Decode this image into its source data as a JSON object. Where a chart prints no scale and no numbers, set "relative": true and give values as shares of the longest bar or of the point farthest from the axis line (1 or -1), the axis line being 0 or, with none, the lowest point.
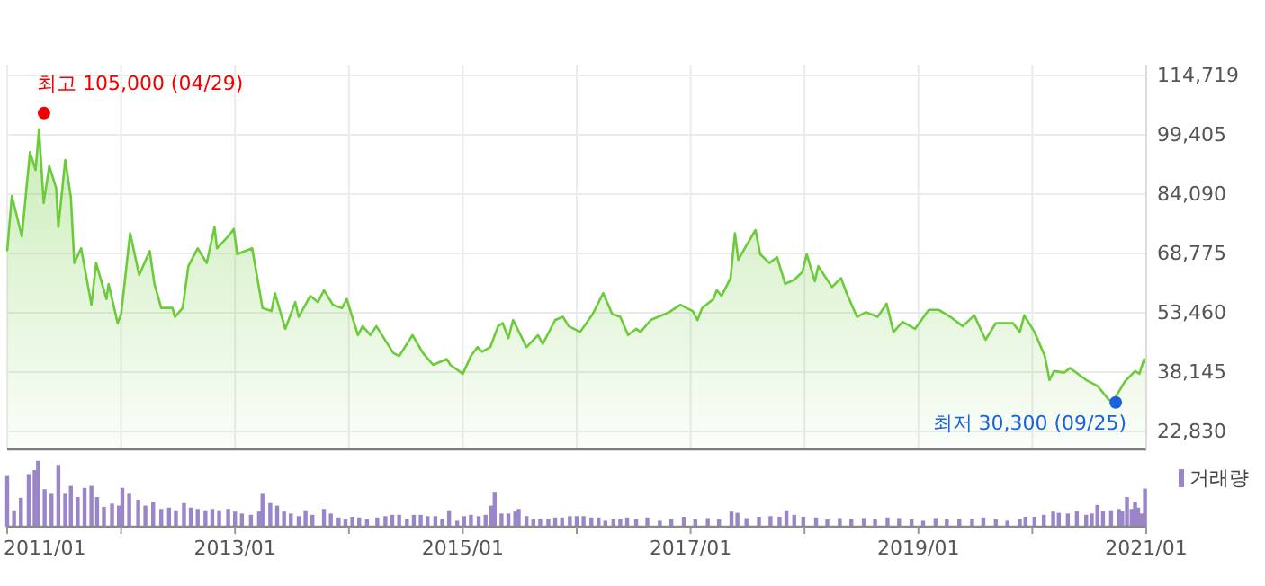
{
  "chart_data": [
    {
      "type": "area",
      "tick_labels": "y",
      "grid": true,
      "xlim": [
        "2011-01-01",
        "2021-01-01"
      ],
      "xticks": [
        {
          "value": "2011-01-01",
          "label": null
        },
        {
          "value": "2012-01-01",
          "label": null
        },
        {
          "value": "2013-01-01",
          "label": null
        },
        {
          "value": "2014-01-01",
          "label": null
        },
        {
          "value": "2015-01-01",
          "label": null
        },
        {
          "value": "2016-01-01",
          "label": null
        },
        {
          "value": "2017-01-01",
          "label": null
        },
        {
          "value": "2018-01-01",
          "label": null
        },
        {
          "value": "2019-01-01",
          "label": null
        },
        {
          "value": "2020-01-01",
          "label": null
        },
        {
          "value": "2021-01-01",
          "label": null
        }
      ],
      "ylim": [
        18190,
        117500
      ],
      "yticks": [
        {
          "value": 114719,
          "label": "114,719"
        },
        {
          "value": 99405,
          "label": "99,405"
        },
        {
          "value": 84090,
          "label": "84,090"
        },
        {
          "value": 68775,
          "label": "68,775"
        },
        {
          "value": 53460,
          "label": "53,460"
        },
        {
          "value": 38145,
          "label": "38,145"
        },
        {
          "value": 22830,
          "label": "22,830"
        }
      ],
      "annotations": [
        {
          "text": "최고 105,000 (04/29)",
          "x": "2011-04-29",
          "y": 105000
        },
        {
          "text": "최저 30,300 (09/25)",
          "x": "2020-09-25",
          "y": 30300
        }
      ],
      "series": [
        {
          "color": "#6ccb3a",
          "x": [
            "2011-01-01",
            "2011-01-16",
            "2011-02-17",
            "2011-03-15",
            "2011-04-02",
            "2011-04-13",
            "2011-04-28",
            "2011-05-16",
            "2011-06-07",
            "2011-06-14",
            "2011-07-06",
            "2011-07-24",
            "2011-08-04",
            "2011-08-26",
            "2011-09-28",
            "2011-10-13",
            "2011-11-15",
            "2011-11-22",
            "2011-12-21",
            "2012-01-01",
            "2012-01-30",
            "2012-02-28",
            "2012-04-02",
            "2012-04-17",
            "2012-05-09",
            "2012-06-14",
            "2012-06-22",
            "2012-07-17",
            "2012-08-04",
            "2012-09-03",
            "2012-10-02",
            "2012-10-27",
            "2012-11-04",
            "2012-12-10",
            "2012-12-28",
            "2013-01-08",
            "2013-02-25",
            "2013-03-30",
            "2013-04-28",
            "2013-05-09",
            "2013-06-11",
            "2013-07-13",
            "2013-07-24",
            "2013-08-30",
            "2013-09-24",
            "2013-10-13",
            "2013-11-11",
            "2013-12-10",
            "2013-12-25",
            "2014-01-30",
            "2014-02-14",
            "2014-03-11",
            "2014-03-30",
            "2014-05-23",
            "2014-06-11",
            "2014-07-24",
            "2014-08-26",
            "2014-09-28",
            "2014-11-11",
            "2014-11-22",
            "2015-01-01",
            "2015-01-27",
            "2015-02-17",
            "2015-03-04",
            "2015-03-30",
            "2015-04-24",
            "2015-05-09",
            "2015-05-27",
            "2015-06-11",
            "2015-07-24",
            "2015-08-30",
            "2015-09-14",
            "2015-10-24",
            "2015-11-18",
            "2015-12-06",
            "2016-01-12",
            "2016-02-21",
            "2016-03-26",
            "2016-04-24",
            "2016-05-20",
            "2016-06-14",
            "2016-07-10",
            "2016-07-24",
            "2016-08-26",
            "2016-10-24",
            "2016-11-29",
            "2017-01-08",
            "2017-01-23",
            "2017-02-07",
            "2017-03-15",
            "2017-03-26",
            "2017-04-10",
            "2017-05-09",
            "2017-05-23",
            "2017-06-03",
            "2017-06-29",
            "2017-07-28",
            "2017-08-12",
            "2017-09-10",
            "2017-10-05",
            "2017-10-31",
            "2017-11-29",
            "2017-12-25",
            "2018-01-08",
            "2018-02-03",
            "2018-02-14",
            "2018-03-30",
            "2018-04-28",
            "2018-05-16",
            "2018-06-18",
            "2018-07-17",
            "2018-08-23",
            "2018-09-21",
            "2018-10-13",
            "2018-11-11",
            "2018-12-21",
            "2019-02-03",
            "2019-03-08",
            "2019-04-13",
            "2019-05-23",
            "2019-06-29",
            "2019-08-04",
            "2019-09-06",
            "2019-10-31",
            "2019-11-22",
            "2019-12-06",
            "2020-01-08",
            "2020-02-10",
            "2020-02-25",
            "2020-03-11",
            "2020-04-13",
            "2020-05-01",
            "2020-06-22",
            "2020-07-28",
            "2020-09-03",
            "2020-09-17",
            "2020-10-24",
            "2020-11-26",
            "2020-12-10",
            "2020-12-25",
            "2021-01-01"
          ],
          "values": [
            69400,
            83600,
            73200,
            94900,
            90300,
            100800,
            81800,
            91300,
            85600,
            75600,
            92900,
            83300,
            66300,
            70100,
            55500,
            66300,
            57000,
            60900,
            50800,
            53100,
            74000,
            63200,
            69400,
            60900,
            54700,
            54700,
            52400,
            54700,
            65500,
            70100,
            66300,
            75600,
            70100,
            73200,
            75100,
            68600,
            70100,
            54700,
            53900,
            58500,
            49300,
            56200,
            52400,
            57800,
            56200,
            59300,
            55500,
            54700,
            57000,
            47700,
            50000,
            47700,
            50000,
            43100,
            42300,
            47700,
            43100,
            40000,
            41500,
            40000,
            37700,
            42300,
            44600,
            43400,
            44600,
            50000,
            50800,
            46900,
            51600,
            44600,
            47700,
            45400,
            51600,
            52400,
            50000,
            48500,
            53100,
            58500,
            53100,
            52400,
            47700,
            49300,
            48500,
            51600,
            53600,
            55500,
            53900,
            51600,
            54700,
            57000,
            59300,
            57800,
            62400,
            74000,
            67100,
            70900,
            74800,
            68600,
            66300,
            67800,
            60900,
            62000,
            64000,
            68600,
            61600,
            65500,
            60100,
            62400,
            58500,
            52400,
            53600,
            52400,
            55800,
            48500,
            51100,
            49300,
            54200,
            54200,
            52400,
            50000,
            52800,
            46500,
            50800,
            50800,
            48500,
            52800,
            48500,
            42300,
            36100,
            38400,
            38000,
            39200,
            36100,
            34600,
            31000,
            30700,
            35700,
            38400,
            37700,
            41500,
            40300
          ]
        }
      ]
    },
    {
      "type": "bar",
      "relative": true,
      "tick_labels": "x",
      "legend": "top right",
      "xlim": [
        "2011-01-01",
        "2021-01-01"
      ],
      "xticks": [
        {
          "value": "2011-01-01",
          "label": "2011/01"
        },
        {
          "value": "2012-01-01",
          "label": null
        },
        {
          "value": "2013-01-01",
          "label": "2013/01"
        },
        {
          "value": "2014-01-01",
          "label": null
        },
        {
          "value": "2015-01-01",
          "label": "2015/01"
        },
        {
          "value": "2016-01-01",
          "label": null
        },
        {
          "value": "2017-01-01",
          "label": "2017/01"
        },
        {
          "value": "2018-01-01",
          "label": null
        },
        {
          "value": "2019-01-01",
          "label": "2019/01"
        },
        {
          "value": "2020-01-01",
          "label": null
        },
        {
          "value": "2021-01-01",
          "label": "2021/01"
        }
      ],
      "series": [
        {
          "name": "거래량",
          "color": "#9b85c9",
          "x": [
            "2011-01-01",
            "2011-01-23",
            "2011-02-14",
            "2011-03-11",
            "2011-03-30",
            "2011-04-10",
            "2011-05-01",
            "2011-05-23",
            "2011-06-14",
            "2011-07-06",
            "2011-07-24",
            "2011-08-15",
            "2011-09-06",
            "2011-09-28",
            "2011-10-16",
            "2011-11-07",
            "2011-12-03",
            "2011-12-25",
            "2012-01-05",
            "2012-01-27",
            "2012-02-25",
            "2012-03-19",
            "2012-04-13",
            "2012-05-09",
            "2012-06-03",
            "2012-06-25",
            "2012-07-21",
            "2012-08-12",
            "2012-09-03",
            "2012-09-28",
            "2012-10-20",
            "2012-11-11",
            "2012-12-10",
            "2013-01-01",
            "2013-01-23",
            "2013-02-21",
            "2013-03-19",
            "2013-03-30",
            "2013-04-24",
            "2013-05-16",
            "2013-06-07",
            "2013-06-29",
            "2013-07-24",
            "2013-08-15",
            "2013-09-06",
            "2013-10-13",
            "2013-11-04",
            "2013-11-29",
            "2013-12-21",
            "2014-01-12",
            "2014-02-03",
            "2014-02-28",
            "2014-04-02",
            "2014-04-28",
            "2014-05-20",
            "2014-06-11",
            "2014-07-06",
            "2014-07-28",
            "2014-08-19",
            "2014-09-10",
            "2014-10-05",
            "2014-10-27",
            "2014-11-18",
            "2014-12-14",
            "2015-01-05",
            "2015-01-27",
            "2015-02-21",
            "2015-03-15",
            "2015-04-02",
            "2015-04-13",
            "2015-05-05",
            "2015-05-27",
            "2015-06-18",
            "2015-06-29",
            "2015-07-24",
            "2015-08-15",
            "2015-09-06",
            "2015-10-02",
            "2015-10-24",
            "2015-11-15",
            "2015-12-10",
            "2016-01-01",
            "2016-01-23",
            "2016-02-17",
            "2016-03-11",
            "2016-04-02",
            "2016-04-28",
            "2016-05-20",
            "2016-06-11",
            "2016-07-10",
            "2016-08-15",
            "2016-09-24",
            "2016-10-31",
            "2016-12-10",
            "2017-01-16",
            "2017-02-25",
            "2017-04-02",
            "2017-05-12",
            "2017-05-31",
            "2017-06-29",
            "2017-08-08",
            "2017-09-14",
            "2017-10-13",
            "2017-11-04",
            "2017-11-29",
            "2017-12-28",
            "2018-02-07",
            "2018-03-15",
            "2018-04-24",
            "2018-05-31",
            "2018-07-10",
            "2018-08-15",
            "2018-09-24",
            "2018-10-31",
            "2018-12-10",
            "2019-01-16",
            "2019-02-25",
            "2019-04-02",
            "2019-05-12",
            "2019-06-22",
            "2019-07-28",
            "2019-09-06",
            "2019-10-13",
            "2019-11-22",
            "2019-12-10",
            "2020-01-08",
            "2020-02-07",
            "2020-03-08",
            "2020-03-26",
            "2020-04-24",
            "2020-05-23",
            "2020-06-22",
            "2020-07-10",
            "2020-07-28",
            "2020-08-15",
            "2020-09-10",
            "2020-10-05",
            "2020-10-16",
            "2020-10-31",
            "2020-11-15",
            "2020-11-26",
            "2020-12-06",
            "2020-12-17",
            "2020-12-28"
          ],
          "values": [
            0.77,
            0.25,
            0.44,
            0.8,
            0.86,
            1.0,
            0.57,
            0.5,
            0.94,
            0.5,
            0.62,
            0.45,
            0.59,
            0.62,
            0.45,
            0.3,
            0.35,
            0.32,
            0.59,
            0.5,
            0.41,
            0.32,
            0.38,
            0.27,
            0.29,
            0.25,
            0.36,
            0.29,
            0.27,
            0.25,
            0.27,
            0.25,
            0.27,
            0.23,
            0.2,
            0.18,
            0.23,
            0.5,
            0.36,
            0.32,
            0.23,
            0.2,
            0.16,
            0.25,
            0.18,
            0.27,
            0.2,
            0.14,
            0.11,
            0.15,
            0.14,
            0.11,
            0.14,
            0.16,
            0.18,
            0.18,
            0.11,
            0.18,
            0.18,
            0.16,
            0.16,
            0.11,
            0.25,
            0.09,
            0.16,
            0.18,
            0.16,
            0.18,
            0.32,
            0.53,
            0.2,
            0.2,
            0.23,
            0.27,
            0.16,
            0.11,
            0.11,
            0.11,
            0.14,
            0.14,
            0.16,
            0.16,
            0.16,
            0.14,
            0.14,
            0.09,
            0.11,
            0.11,
            0.14,
            0.11,
            0.14,
            0.09,
            0.11,
            0.15,
            0.11,
            0.13,
            0.11,
            0.23,
            0.21,
            0.13,
            0.15,
            0.16,
            0.15,
            0.25,
            0.18,
            0.15,
            0.14,
            0.11,
            0.13,
            0.11,
            0.13,
            0.11,
            0.14,
            0.13,
            0.11,
            0.09,
            0.13,
            0.11,
            0.12,
            0.12,
            0.14,
            0.11,
            0.09,
            0.11,
            0.15,
            0.15,
            0.18,
            0.23,
            0.21,
            0.2,
            0.24,
            0.18,
            0.2,
            0.33,
            0.24,
            0.25,
            0.27,
            0.24,
            0.45,
            0.27,
            0.38,
            0.29,
            0.2,
            0.58
          ]
        }
      ]
    }
  ]
}
